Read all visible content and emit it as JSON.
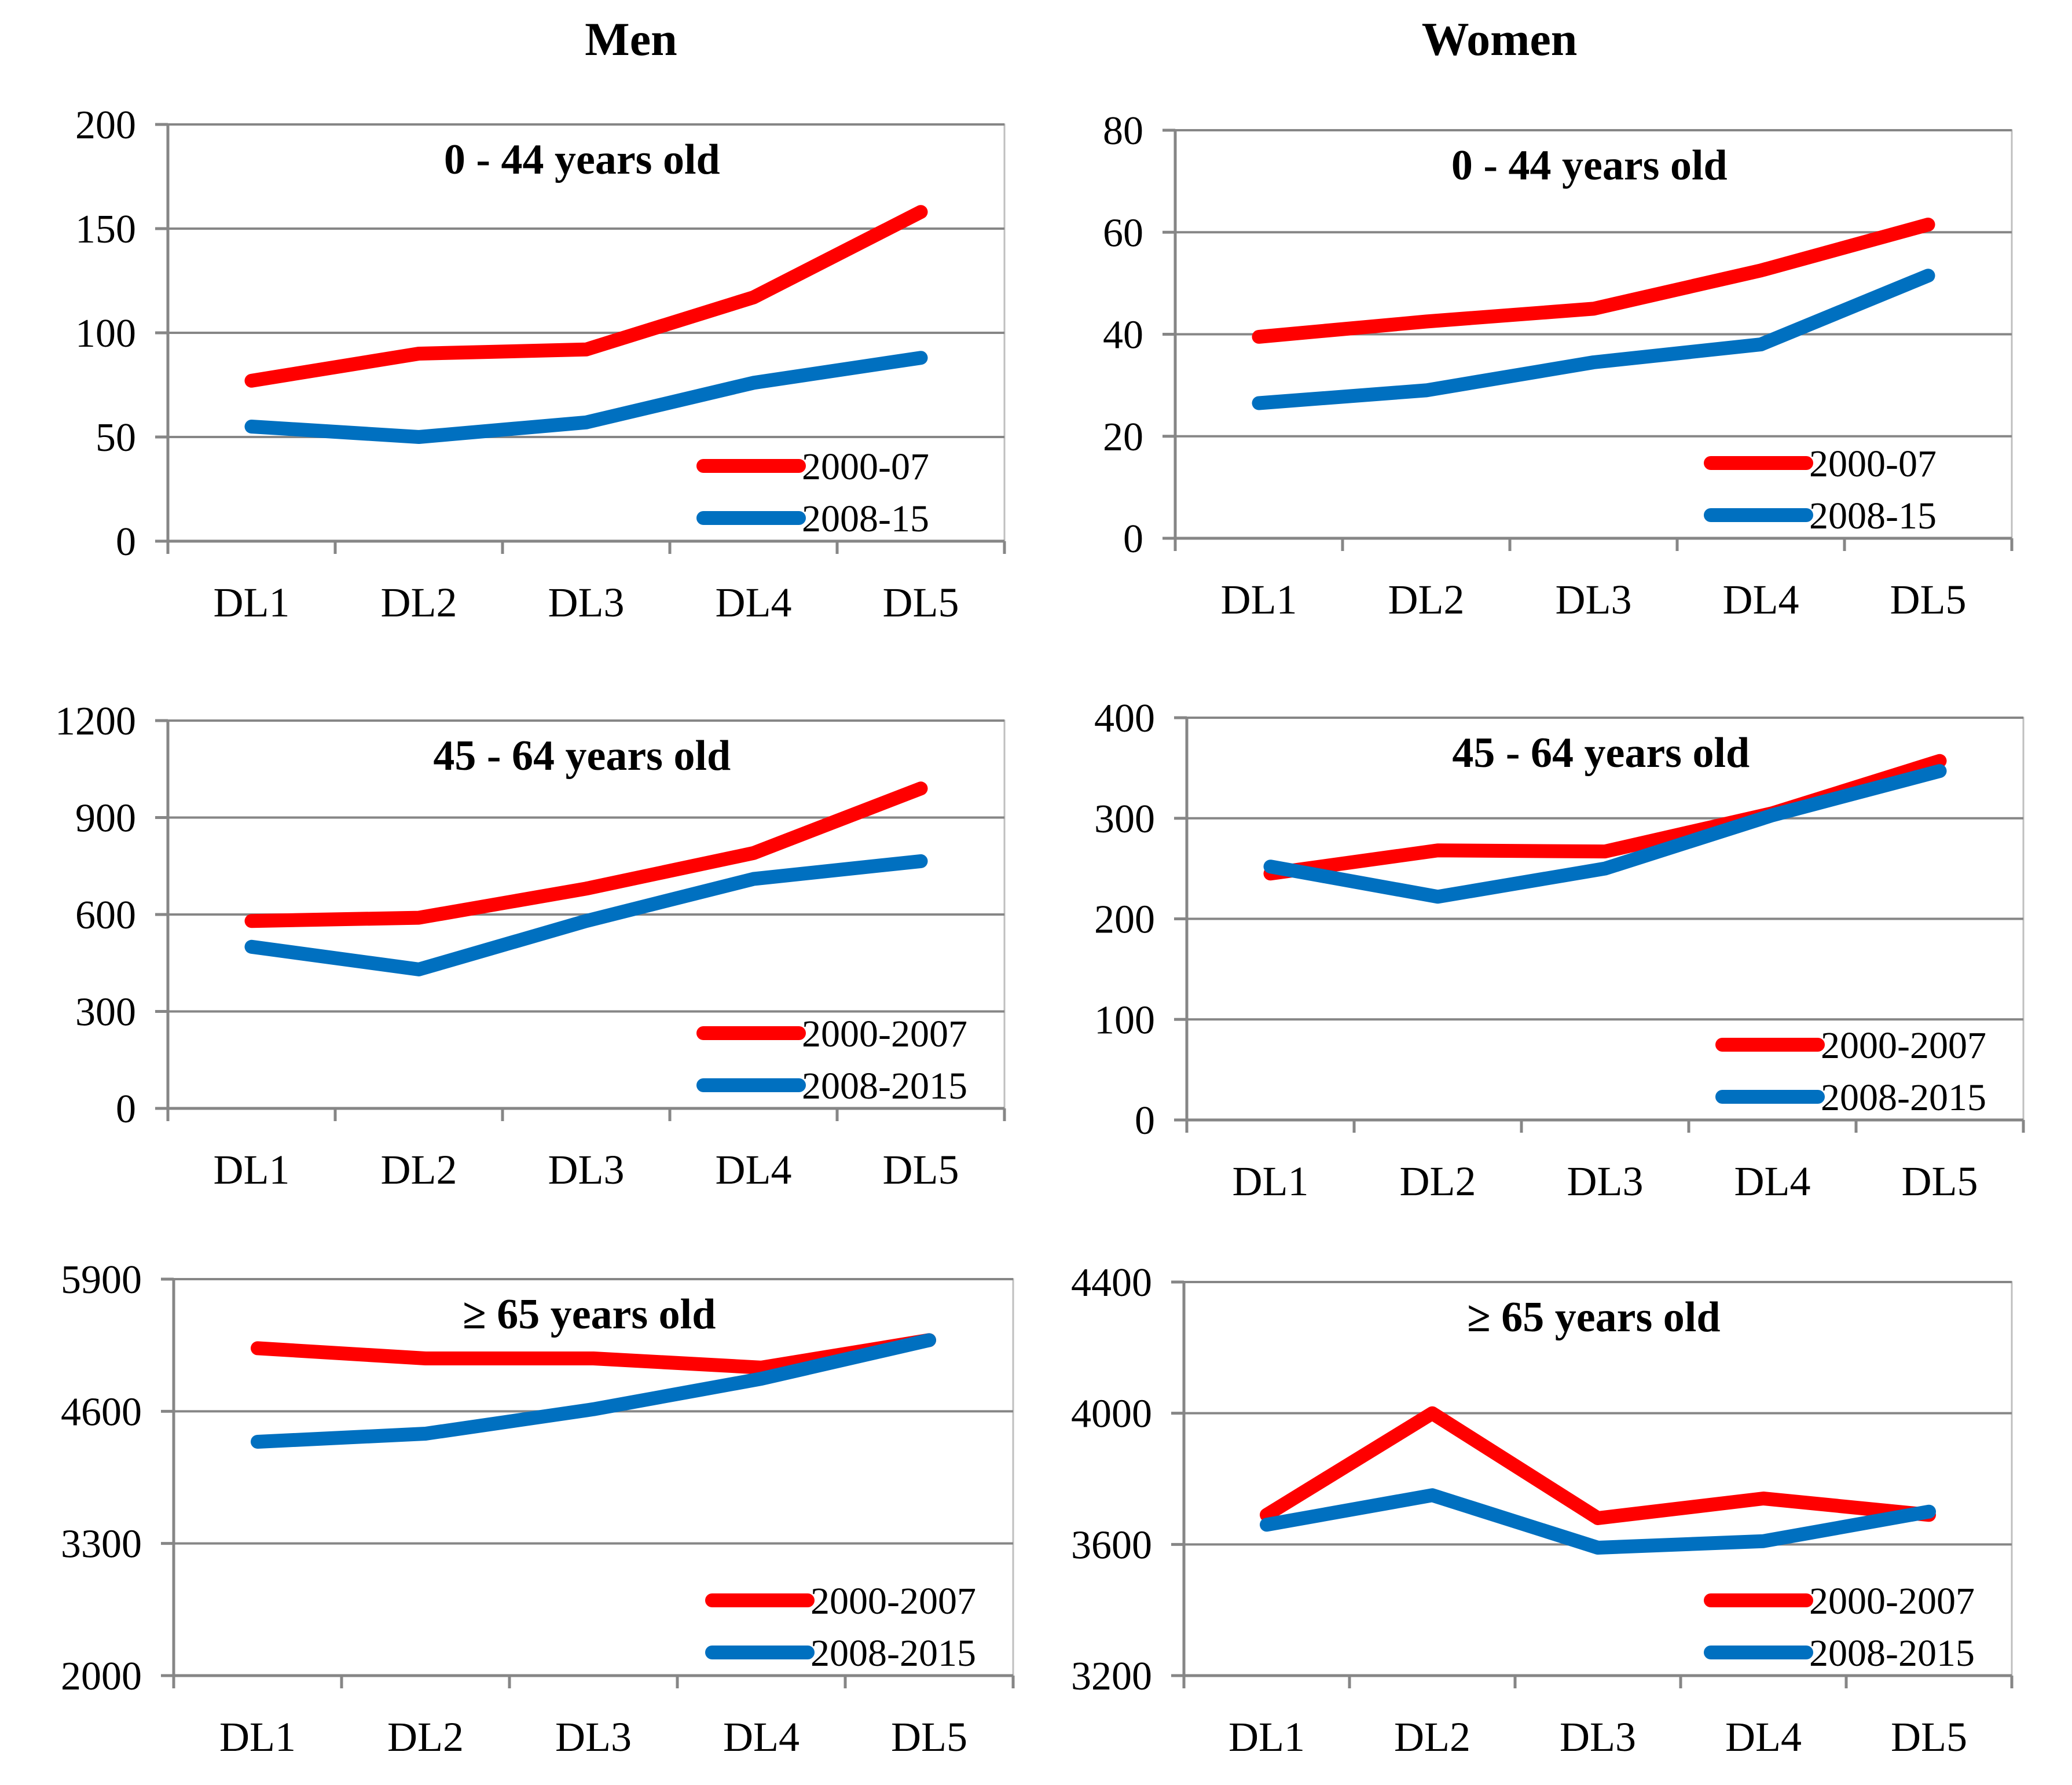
{
  "column_titles": [
    "Men",
    "Women"
  ],
  "colors": {
    "series_a": "#ff0000",
    "series_b": "#0070c0",
    "grid": "#868686",
    "axis": "#868686",
    "frame": "#bfbfbf",
    "text": "#000000"
  },
  "chart_data": [
    {
      "type": "line",
      "group": "Men",
      "title": "0 - 44  years old",
      "categories": [
        "DL1",
        "DL2",
        "DL3",
        "DL4",
        "DL5"
      ],
      "ylim": [
        0,
        200
      ],
      "yticks": [
        0,
        50,
        100,
        150,
        200
      ],
      "ytick_labels": [
        "0",
        "50",
        "100",
        "150",
        "200"
      ],
      "grid": true,
      "legend_position": "bottom-right",
      "series": [
        {
          "name": "2000-07",
          "values": [
            77,
            90,
            92,
            117,
            158
          ]
        },
        {
          "name": "2008-15",
          "values": [
            55,
            50,
            57,
            76,
            88
          ]
        }
      ]
    },
    {
      "type": "line",
      "group": "Women",
      "title": "0 - 44 years old",
      "categories": [
        "DL1",
        "DL2",
        "DL3",
        "DL4",
        "DL5"
      ],
      "ylim": [
        0,
        80
      ],
      "yticks": [
        0,
        20,
        40,
        60,
        80
      ],
      "ytick_labels": [
        "0",
        "20",
        "40",
        "60",
        "80"
      ],
      "grid": true,
      "legend_position": "bottom-right",
      "series": [
        {
          "name": "2000-07",
          "values": [
            39.5,
            42.5,
            45,
            52.5,
            61.5
          ]
        },
        {
          "name": "2008-15",
          "values": [
            26.5,
            29,
            34.5,
            38,
            51.5
          ]
        }
      ]
    },
    {
      "type": "line",
      "group": "Men",
      "title": "45 - 64 years old",
      "categories": [
        "DL1",
        "DL2",
        "DL3",
        "DL4",
        "DL5"
      ],
      "ylim": [
        0,
        1200
      ],
      "yticks": [
        0,
        300,
        600,
        900,
        1200
      ],
      "ytick_labels": [
        "0",
        "300",
        "600",
        "900",
        "1200"
      ],
      "grid": true,
      "legend_position": "bottom-right",
      "series": [
        {
          "name": "2000-2007",
          "values": [
            580,
            590,
            680,
            790,
            990
          ]
        },
        {
          "name": "2008-2015",
          "values": [
            500,
            430,
            580,
            710,
            765
          ]
        }
      ]
    },
    {
      "type": "line",
      "group": "Women",
      "title": "45 - 64 years old",
      "categories": [
        "DL1",
        "DL2",
        "DL3",
        "DL4",
        "DL5"
      ],
      "ylim": [
        0,
        400
      ],
      "yticks": [
        0,
        100,
        200,
        300,
        400
      ],
      "ytick_labels": [
        "0",
        "100",
        "200",
        "300",
        "400"
      ],
      "grid": true,
      "legend_position": "bottom-right",
      "series": [
        {
          "name": "2000-2007",
          "values": [
            245,
            268,
            267,
            305,
            357
          ]
        },
        {
          "name": "2008-2015",
          "values": [
            252,
            222,
            250,
            303,
            347
          ]
        }
      ]
    },
    {
      "type": "line",
      "group": "Men",
      "title": "≥ 65 years old",
      "categories": [
        "DL1",
        "DL2",
        "DL3",
        "DL4",
        "DL5"
      ],
      "ylim": [
        2000,
        5900
      ],
      "yticks": [
        2000,
        3300,
        4600,
        5900
      ],
      "ytick_labels": [
        "2000",
        "3300",
        "4600",
        "5900"
      ],
      "grid": true,
      "legend_position": "bottom-right",
      "series": [
        {
          "name": "2000-2007",
          "values": [
            5220,
            5120,
            5120,
            5030,
            5300
          ]
        },
        {
          "name": "2008-2015",
          "values": [
            4300,
            4380,
            4620,
            4920,
            5300
          ]
        }
      ]
    },
    {
      "type": "line",
      "group": "Women",
      "title": "≥ 65 years old",
      "categories": [
        "DL1",
        "DL2",
        "DL3",
        "DL4",
        "DL5"
      ],
      "ylim": [
        3200,
        4400
      ],
      "yticks": [
        3200,
        3600,
        4000,
        4400
      ],
      "ytick_labels": [
        "3200",
        "3600",
        "4000",
        "4400"
      ],
      "grid": true,
      "legend_position": "bottom-right",
      "series": [
        {
          "name": "2000-2007",
          "values": [
            3690,
            4000,
            3680,
            3740,
            3690
          ]
        },
        {
          "name": "2008-2015",
          "values": [
            3660,
            3750,
            3590,
            3610,
            3700
          ]
        }
      ]
    }
  ]
}
